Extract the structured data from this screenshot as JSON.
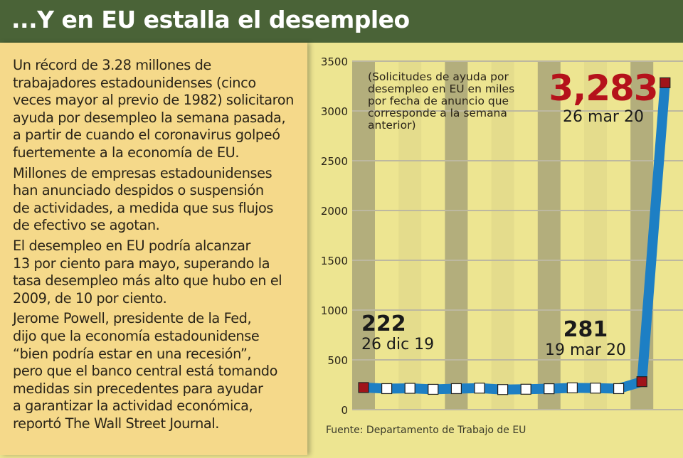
{
  "header": {
    "title": "...Y en EU estalla el desempleo"
  },
  "article": {
    "paragraphs": [
      {
        "lines": [
          "Un récord de 3.28 millones de",
          "trabajadores estadounidenses (cinco",
          "veces mayor al previo de 1982) solicitaron",
          "ayuda por desempleo la semana pasada,",
          "a partir de cuando el coronavirus golpeó",
          "fuertemente a la economía de EU."
        ]
      },
      {
        "lines": [
          "Millones de empresas estadounidenses",
          "han anunciado despidos o suspensión",
          "de actividades, a medida que sus flujos",
          "de efectivo se agotan."
        ]
      },
      {
        "lines": [
          "El desempleo en EU podría alcanzar",
          "13 por ciento para mayo, superando la",
          "tasa desempleo más alto que hubo en el",
          "2009, de 10 por ciento."
        ]
      },
      {
        "lines": [
          "Jerome Powell, presidente de la Fed,",
          "dijo que la economía estadounidense",
          "“bien podría estar en una recesión”,",
          "pero que el banco central está tomando",
          "medidas sin precedentes para ayudar",
          "a garantizar la actividad económica,",
          "reportó The Wall Street Journal."
        ]
      }
    ]
  },
  "chart_data": {
    "type": "line",
    "note_lines": [
      "(Solicitudes de ayuda por",
      "desempleo en EU en miles",
      "por fecha de anuncio que",
      "corresponde a la semana",
      "anterior)"
    ],
    "source": "Fuente: Departamento de Trabajo de EU",
    "ylim": [
      0,
      3500
    ],
    "yticks": [
      "0",
      "500",
      "1000",
      "1500",
      "2000",
      "2500",
      "3000",
      "3500"
    ],
    "grid": true,
    "values": [
      222,
      211,
      214,
      204,
      211,
      216,
      202,
      205,
      210,
      219,
      216,
      211,
      281,
      3283
    ],
    "highlighted_indices": [
      0,
      12,
      13
    ],
    "annotations": [
      {
        "value": "222",
        "date": "26 dic 19"
      },
      {
        "value": "281",
        "date": "19 mar 20"
      },
      {
        "value": "3,283",
        "date": "26 mar 20"
      }
    ],
    "colors": {
      "line": "#1d7fc4",
      "highlight_marker": "#a0141a",
      "marker": "#ffffff",
      "big_value": "#b5121b"
    }
  }
}
